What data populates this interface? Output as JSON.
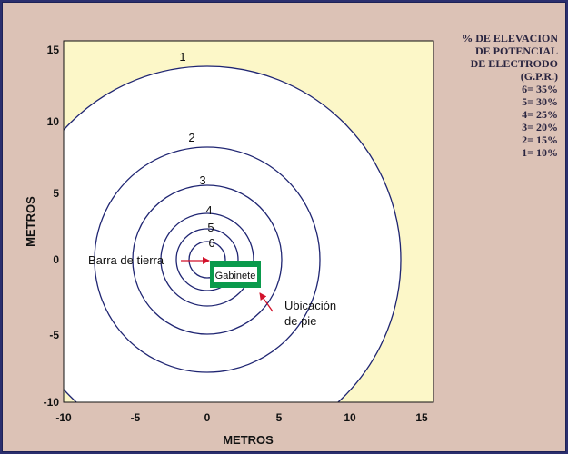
{
  "x_axis": {
    "title": "METROS",
    "ticks": [
      "-10",
      "-5",
      "0",
      "5",
      "10",
      "15"
    ]
  },
  "y_axis": {
    "title": "METROS",
    "ticks": [
      "15",
      "10",
      "5",
      "0",
      "-5",
      "-10"
    ]
  },
  "legend": {
    "title_lines": [
      "% DE ELEVACION",
      "DE POTENCIAL",
      "DE ELECTRODO",
      "(G.P.R.)"
    ],
    "items": [
      "6= 35%",
      "5= 30%",
      "4= 25%",
      "3= 20%",
      "2= 15%",
      "1= 10%"
    ]
  },
  "contours": [
    {
      "label": "1",
      "value_percent": 10
    },
    {
      "label": "2",
      "value_percent": 15
    },
    {
      "label": "3",
      "value_percent": 20
    },
    {
      "label": "4",
      "value_percent": 25
    },
    {
      "label": "5",
      "value_percent": 30
    },
    {
      "label": "6",
      "value_percent": 35
    }
  ],
  "annotations": {
    "ground_bar": "Barra de tierra",
    "cabinet": "Gabinete",
    "foot_location_line1": "Ubicación\u0001",
    "foot_location_line2": "de pie"
  },
  "colors": {
    "background": "#dcc2b6",
    "plot_fill": "#fcf7c8",
    "contour_fill": "#ffffff",
    "contour_stroke": "#1f2572",
    "cabinet_fill": "#0a9a4c",
    "arrow": "#d2122b",
    "border": "#2b2f6e"
  }
}
